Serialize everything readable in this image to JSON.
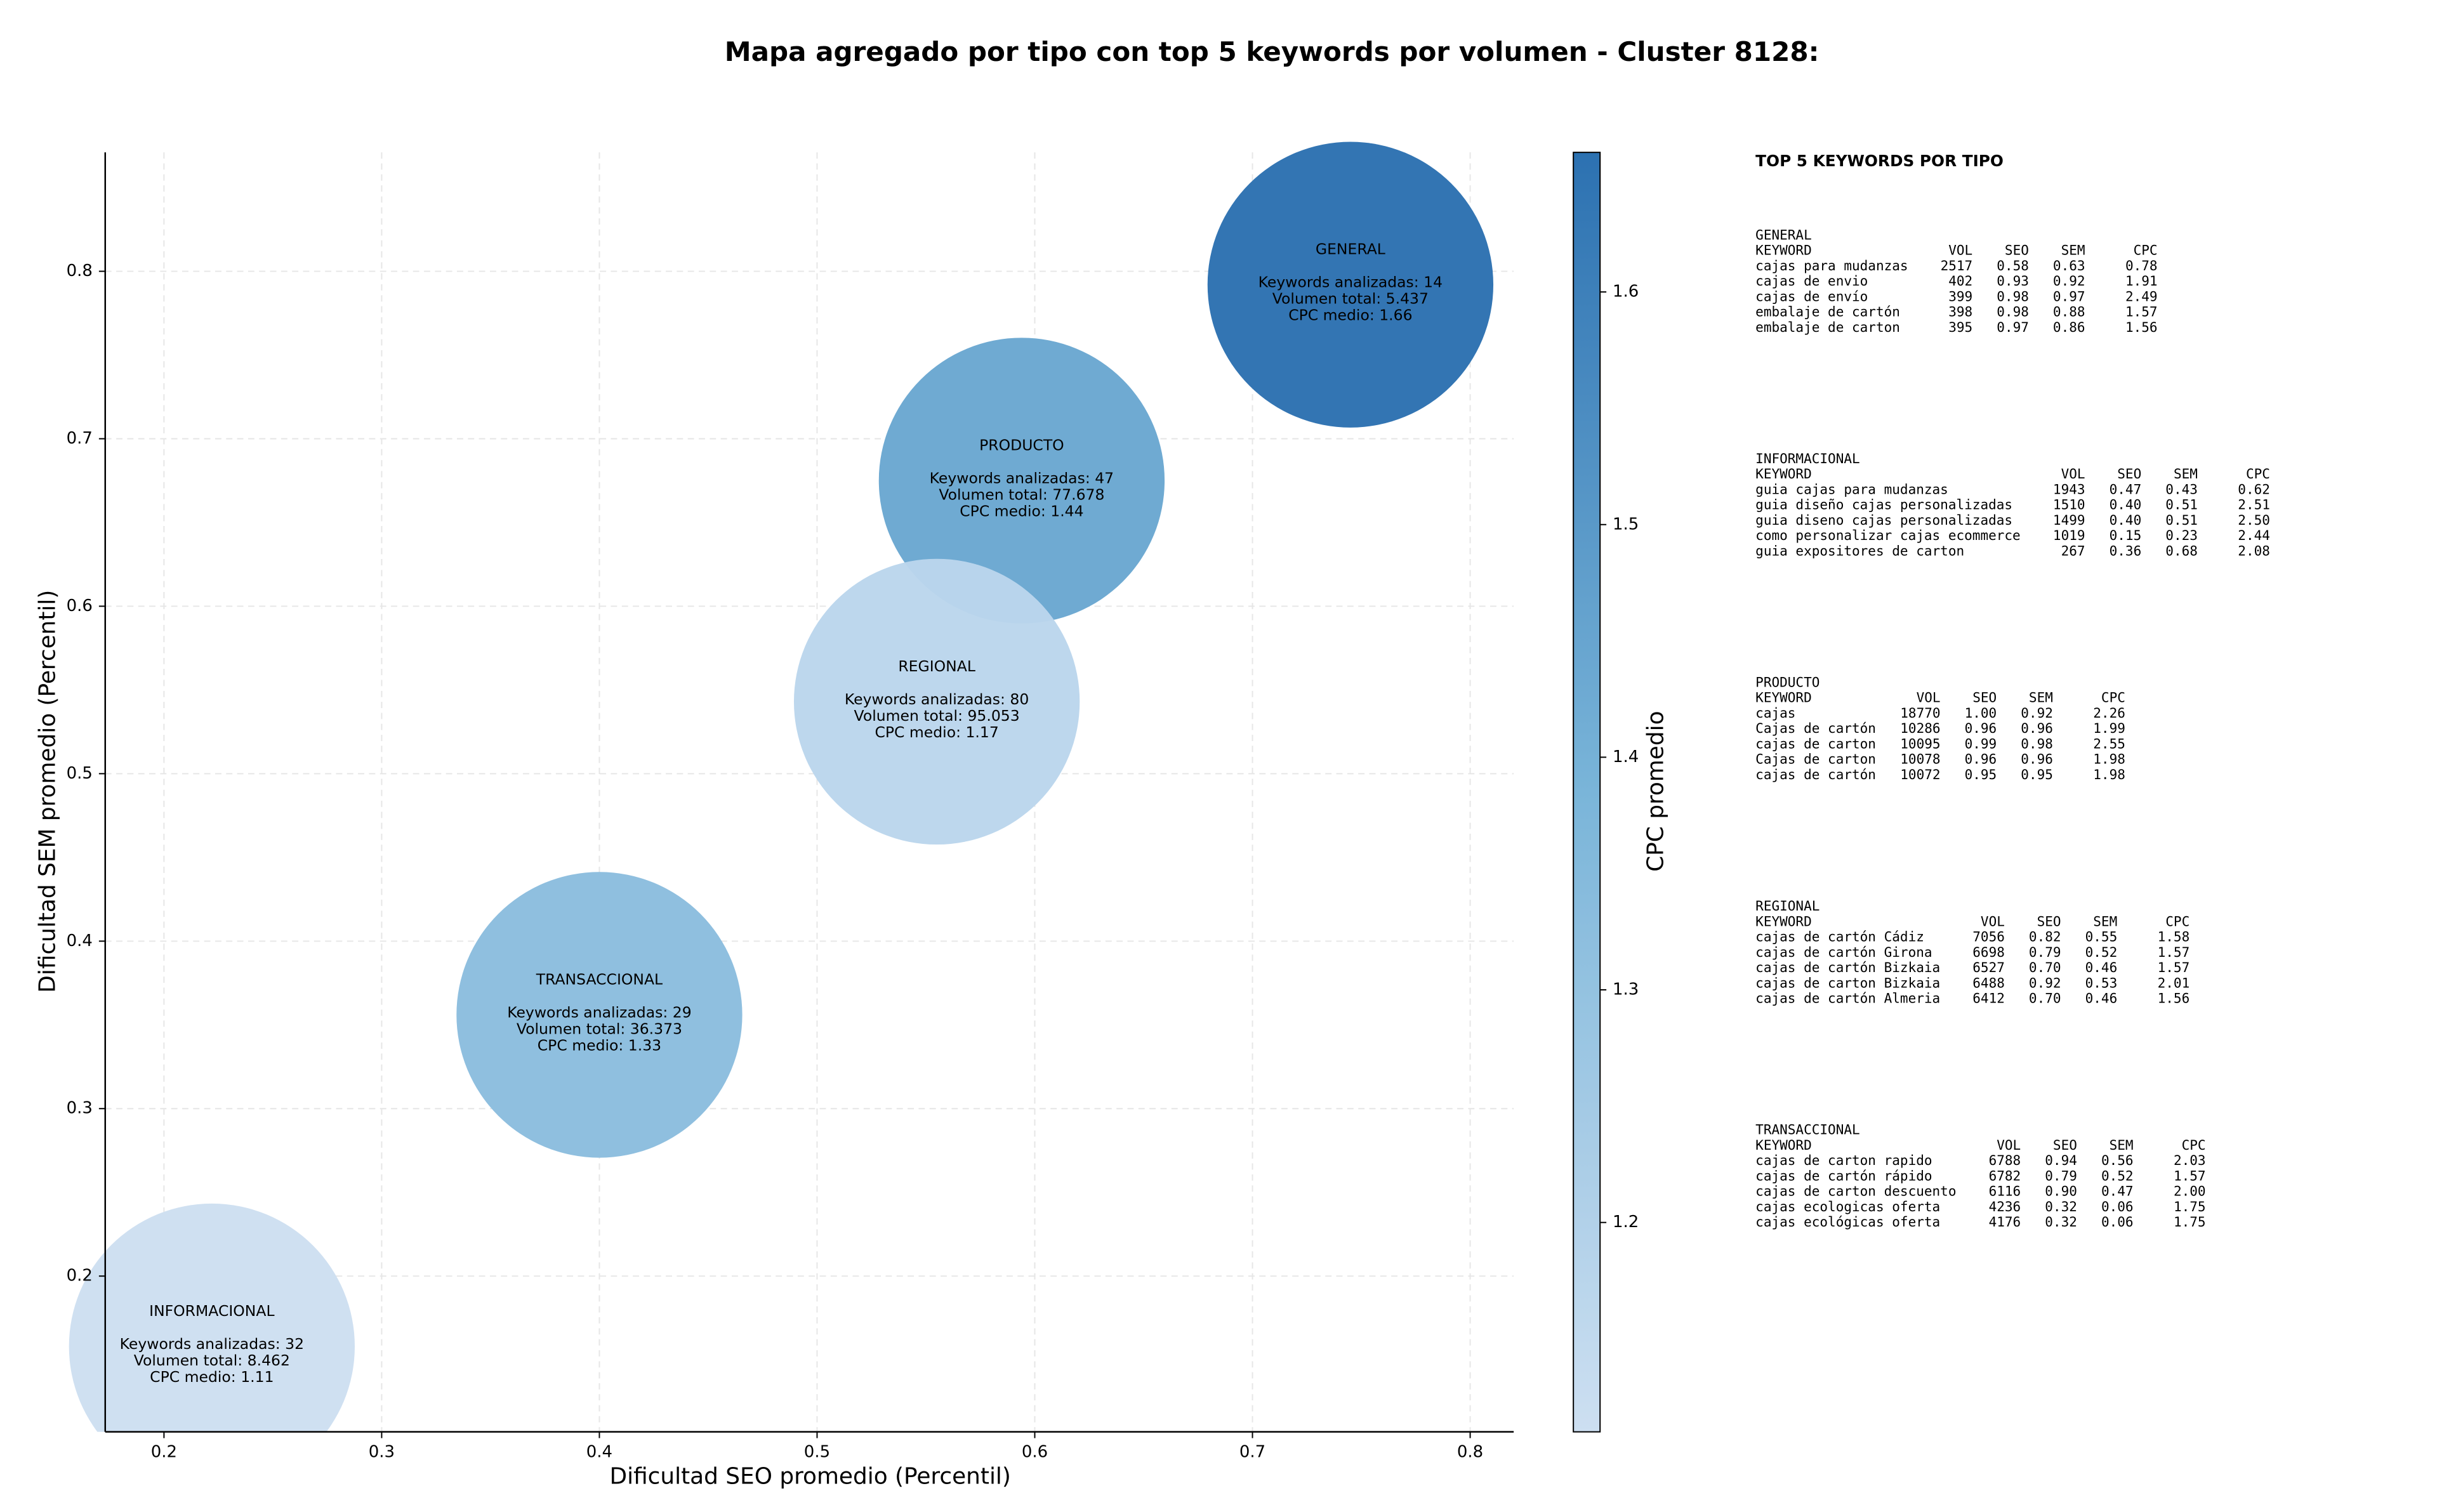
{
  "chart_data": {
    "type": "scatter",
    "title": "Mapa agregado por tipo con top 5 keywords por volumen - Cluster 8128:",
    "xlabel": "Dificultad SEO promedio (Percentil)",
    "ylabel": "Dificultad SEM promedio (Percentil)",
    "labels": [
      "GENERAL",
      "PRODUCTO",
      "REGIONAL",
      "TRANSACCIONAL",
      "INFORMACIONAL"
    ],
    "x": [
      0.745,
      0.594,
      0.555,
      0.4,
      0.222
    ],
    "values": [
      0.792,
      0.675,
      0.543,
      0.356,
      0.158
    ],
    "cpc": [
      1.66,
      1.44,
      1.17,
      1.33,
      1.11
    ],
    "annotations": [
      [
        "Keywords analizadas: 14",
        "Volumen total: 5.437",
        "CPC medio: 1.66"
      ],
      [
        "Keywords analizadas: 47",
        "Volumen total: 77.678",
        "CPC medio: 1.44"
      ],
      [
        "Keywords analizadas: 80",
        "Volumen total: 95.053",
        "CPC medio: 1.17"
      ],
      [
        "Keywords analizadas: 29",
        "Volumen total: 36.373",
        "CPC medio: 1.33"
      ],
      [
        "Keywords analizadas: 32",
        "Volumen total: 8.462",
        "CPC medio: 1.11"
      ]
    ],
    "xlim": [
      0.173,
      0.82
    ],
    "ylim": [
      0.107,
      0.871
    ],
    "xticks": [
      0.2,
      0.3,
      0.4,
      0.5,
      0.6,
      0.7,
      0.8
    ],
    "yticks": [
      0.2,
      0.3,
      0.4,
      0.5,
      0.6,
      0.7,
      0.8
    ],
    "grid": true,
    "colorbar": {
      "label": "CPC promedio",
      "lim": [
        1.11,
        1.66
      ],
      "ticks": [
        1.2,
        1.3,
        1.4,
        1.5,
        1.6
      ],
      "colormap": [
        "#cddff1",
        "#7ab5d9",
        "#2c71b1"
      ]
    }
  },
  "keyword_panel": {
    "title": "TOP 5 KEYWORDS POR TIPO",
    "columns": [
      "KEYWORD",
      "VOL",
      "SEO",
      "SEM",
      "CPC"
    ],
    "sections": [
      {
        "name": "GENERAL",
        "rows": [
          [
            "cajas para mudanzas",
            "2517",
            "0.58",
            "0.63",
            "0.78"
          ],
          [
            "cajas de envio",
            "402",
            "0.93",
            "0.92",
            "1.91"
          ],
          [
            "cajas de envío",
            "399",
            "0.98",
            "0.97",
            "2.49"
          ],
          [
            "embalaje de cartón",
            "398",
            "0.98",
            "0.88",
            "1.57"
          ],
          [
            "embalaje de carton",
            "395",
            "0.97",
            "0.86",
            "1.56"
          ]
        ]
      },
      {
        "name": "INFORMACIONAL",
        "rows": [
          [
            "guia cajas para mudanzas",
            "1943",
            "0.47",
            "0.43",
            "0.62"
          ],
          [
            "guia diseño cajas personalizadas",
            "1510",
            "0.40",
            "0.51",
            "2.51"
          ],
          [
            "guia diseno cajas personalizadas",
            "1499",
            "0.40",
            "0.51",
            "2.50"
          ],
          [
            "como personalizar cajas ecommerce",
            "1019",
            "0.15",
            "0.23",
            "2.44"
          ],
          [
            "guia expositores de carton",
            "267",
            "0.36",
            "0.68",
            "2.08"
          ]
        ]
      },
      {
        "name": "PRODUCTO",
        "rows": [
          [
            "cajas",
            "18770",
            "1.00",
            "0.92",
            "2.26"
          ],
          [
            "Cajas de cartón",
            "10286",
            "0.96",
            "0.96",
            "1.99"
          ],
          [
            "cajas de carton",
            "10095",
            "0.99",
            "0.98",
            "2.55"
          ],
          [
            "Cajas de carton",
            "10078",
            "0.96",
            "0.96",
            "1.98"
          ],
          [
            "cajas de cartón",
            "10072",
            "0.95",
            "0.95",
            "1.98"
          ]
        ]
      },
      {
        "name": "REGIONAL",
        "rows": [
          [
            "cajas de cartón Cádiz",
            "7056",
            "0.82",
            "0.55",
            "1.58"
          ],
          [
            "cajas de cartón Girona",
            "6698",
            "0.79",
            "0.52",
            "1.57"
          ],
          [
            "cajas de cartón Bizkaia",
            "6527",
            "0.70",
            "0.46",
            "1.57"
          ],
          [
            "cajas de carton Bizkaia",
            "6488",
            "0.92",
            "0.53",
            "2.01"
          ],
          [
            "cajas de cartón Almeria",
            "6412",
            "0.70",
            "0.46",
            "1.56"
          ]
        ]
      },
      {
        "name": "TRANSACCIONAL",
        "rows": [
          [
            "cajas de carton rapido",
            "6788",
            "0.94",
            "0.56",
            "2.03"
          ],
          [
            "cajas de cartón rápido",
            "6782",
            "0.79",
            "0.52",
            "1.57"
          ],
          [
            "cajas de carton descuento",
            "6116",
            "0.90",
            "0.47",
            "2.00"
          ],
          [
            "cajas ecologicas oferta",
            "4236",
            "0.32",
            "0.06",
            "1.75"
          ],
          [
            "cajas ecológicas oferta",
            "4176",
            "0.32",
            "0.06",
            "1.75"
          ]
        ]
      }
    ]
  }
}
